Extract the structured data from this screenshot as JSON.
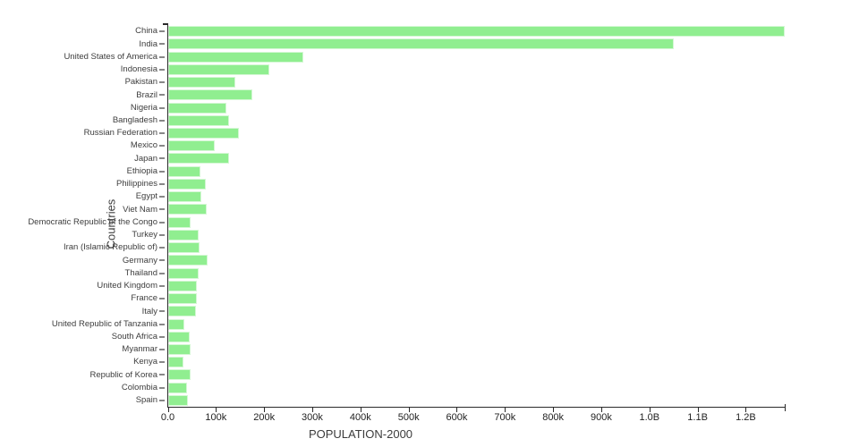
{
  "figure": {
    "background": "#ffffff",
    "x_axis_title": "POPULATION-2000",
    "y_axis_title": "Countries"
  },
  "chart_data": {
    "type": "bar",
    "orientation": "horizontal",
    "title": "",
    "xlabel": "POPULATION-2000",
    "ylabel": "Countries",
    "legend": "none",
    "grid": false,
    "bar_color": "#90ee90",
    "bar_border_color": "#d4f7d4",
    "axis_color": "#2a2a2a",
    "value_unit": "millions of people (estimated from axis)",
    "xlim_millions": [
      0,
      1280
    ],
    "categories": [
      "China",
      "India",
      "United States of America",
      "Indonesia",
      "Pakistan",
      "Brazil",
      "Nigeria",
      "Bangladesh",
      "Russian Federation",
      "Mexico",
      "Japan",
      "Ethiopia",
      "Philippines",
      "Egypt",
      "Viet Nam",
      "Democratic Republic of the Congo",
      "Turkey",
      "Iran (Islamic Republic of)",
      "Germany",
      "Thailand",
      "United Kingdom",
      "France",
      "Italy",
      "United Republic of Tanzania",
      "South Africa",
      "Myanmar",
      "Kenya",
      "Republic of Korea",
      "Colombia",
      "Spain"
    ],
    "values": [
      1280,
      1050,
      280,
      209,
      140,
      174,
      121,
      127,
      146,
      97,
      126,
      66,
      78,
      68,
      80,
      46,
      63,
      65,
      82,
      63,
      59,
      59.5,
      57,
      34,
      45,
      46,
      31,
      47,
      39.5,
      40.5
    ],
    "x_ticks": [
      {
        "value_millions": 0,
        "label": "0.0"
      },
      {
        "value_millions": 100,
        "label": "100k"
      },
      {
        "value_millions": 200,
        "label": "200k"
      },
      {
        "value_millions": 300,
        "label": "300k"
      },
      {
        "value_millions": 400,
        "label": "400k"
      },
      {
        "value_millions": 500,
        "label": "500k"
      },
      {
        "value_millions": 600,
        "label": "600k"
      },
      {
        "value_millions": 700,
        "label": "700k"
      },
      {
        "value_millions": 800,
        "label": "800k"
      },
      {
        "value_millions": 900,
        "label": "900k"
      },
      {
        "value_millions": 1000,
        "label": "1.0B"
      },
      {
        "value_millions": 1100,
        "label": "1.1B"
      },
      {
        "value_millions": 1200,
        "label": "1.2B"
      }
    ]
  }
}
